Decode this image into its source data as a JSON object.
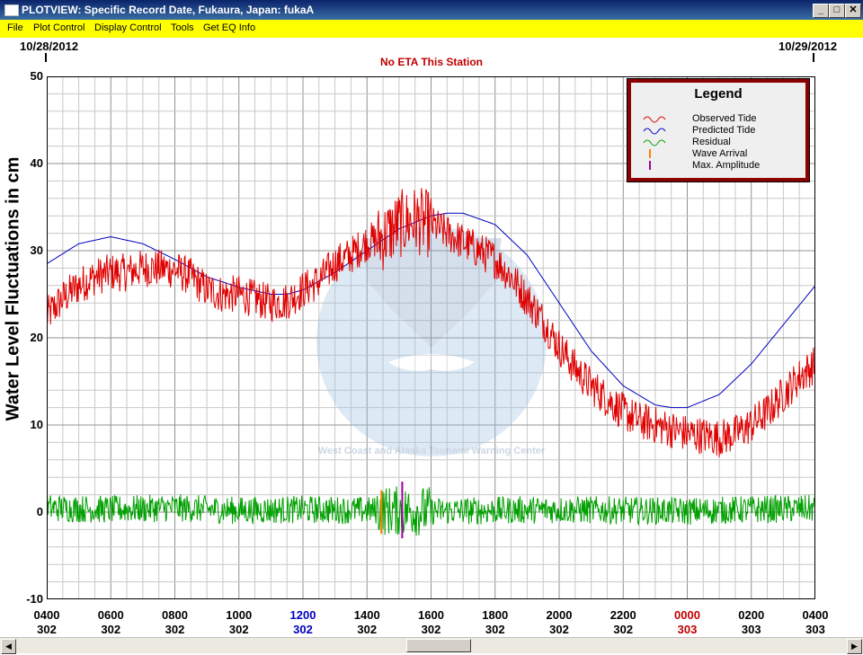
{
  "window": {
    "title": "PLOTVIEW: Specific Record Date, Fukaura, Japan: fukaA",
    "minimize_glyph": "_",
    "maximize_glyph": "□",
    "close_glyph": "✕"
  },
  "menu": [
    "File",
    "Plot Control",
    "Display Control",
    "Tools",
    "Get EQ Info"
  ],
  "header": {
    "start_date": "10/28/2012",
    "end_date": "10/29/2012",
    "notice": "No ETA This Station",
    "notice_color": "#c00000"
  },
  "legend": {
    "title": "Legend",
    "items": [
      {
        "label": "Observed Tide",
        "color": "#e00000",
        "glyph": "wave"
      },
      {
        "label": "Predicted Tide",
        "color": "#0000c0",
        "glyph": "wave"
      },
      {
        "label": "Residual",
        "color": "#00a000",
        "glyph": "wave"
      },
      {
        "label": "Wave Arrival",
        "color": "#ff8000",
        "glyph": "bar"
      },
      {
        "label": "Max. Amplitude",
        "color": "#a000a0",
        "glyph": "bar"
      }
    ]
  },
  "watermark": {
    "text": "West Coast and Alaska Tsunami Warning Center"
  },
  "chart_data": {
    "type": "line",
    "ylabel": "Water Level Fluctuations in cm",
    "ylim": [
      -10,
      50
    ],
    "xlim": [
      4,
      28
    ],
    "yticks": [
      -10,
      0,
      10,
      20,
      30,
      40,
      50
    ],
    "grid": true,
    "legend_position": "top-right",
    "xticks": [
      {
        "x": 4,
        "time": "0400",
        "day": "302",
        "color": "#000000"
      },
      {
        "x": 6,
        "time": "0600",
        "day": "302",
        "color": "#000000"
      },
      {
        "x": 8,
        "time": "0800",
        "day": "302",
        "color": "#000000"
      },
      {
        "x": 10,
        "time": "1000",
        "day": "302",
        "color": "#000000"
      },
      {
        "x": 12,
        "time": "1200",
        "day": "302",
        "color": "#0000c0"
      },
      {
        "x": 14,
        "time": "1400",
        "day": "302",
        "color": "#000000"
      },
      {
        "x": 16,
        "time": "1600",
        "day": "302",
        "color": "#000000"
      },
      {
        "x": 18,
        "time": "1800",
        "day": "302",
        "color": "#000000"
      },
      {
        "x": 20,
        "time": "2000",
        "day": "302",
        "color": "#000000"
      },
      {
        "x": 22,
        "time": "2200",
        "day": "302",
        "color": "#000000"
      },
      {
        "x": 24,
        "time": "0000",
        "day": "303",
        "color": "#c00000"
      },
      {
        "x": 26,
        "time": "0200",
        "day": "303",
        "color": "#000000"
      },
      {
        "x": 28,
        "time": "0400",
        "day": "303",
        "color": "#000000"
      }
    ],
    "series": [
      {
        "name": "Predicted Tide",
        "color": "#0000c0",
        "x": [
          4,
          5,
          6,
          7,
          8,
          9,
          10,
          11,
          11.5,
          12,
          13,
          14,
          15,
          16,
          16.5,
          17,
          18,
          19,
          20,
          21,
          22,
          23,
          23.5,
          24,
          25,
          26,
          27,
          28
        ],
        "y": [
          28.5,
          30.8,
          31.6,
          30.8,
          29,
          27,
          25.8,
          25,
          25,
          25.5,
          27.5,
          30,
          32.5,
          34,
          34.3,
          34.3,
          33,
          29.5,
          24,
          18.5,
          14.5,
          12.3,
          12,
          12,
          13.5,
          17,
          21.5,
          26
        ]
      },
      {
        "name": "Observed Tide",
        "color": "#e00000",
        "x": [
          4,
          4.5,
          5,
          5.5,
          6,
          6.5,
          7,
          7.5,
          8,
          8.5,
          9,
          9.5,
          10,
          10.5,
          11,
          11.5,
          12,
          12.5,
          13,
          13.5,
          14,
          14.5,
          15,
          15.5,
          16,
          16.5,
          17,
          17.5,
          18,
          18.5,
          19,
          19.5,
          20,
          20.5,
          21,
          21.5,
          22,
          22.5,
          23,
          23.5,
          24,
          24.5,
          25,
          25.5,
          26,
          26.5,
          27,
          27.5,
          28
        ],
        "y": [
          22.5,
          24.5,
          26,
          27,
          27.5,
          27.5,
          28,
          28,
          27.8,
          27,
          25.5,
          25,
          25,
          24.5,
          24,
          24.2,
          25.5,
          26.5,
          28.5,
          29.5,
          31,
          31.5,
          33,
          33.5,
          33,
          32,
          31,
          30,
          29,
          27,
          24.5,
          22,
          19,
          16.5,
          14.5,
          13,
          11.5,
          10.5,
          10,
          9.5,
          9,
          8.8,
          8.5,
          9,
          10,
          11.5,
          13.5,
          15.5,
          17
        ]
      },
      {
        "name": "Residual",
        "color": "#00a000",
        "x": [
          4,
          6,
          8,
          10,
          12,
          14,
          16,
          18,
          20,
          22,
          24,
          26,
          28
        ],
        "y": [
          0.5,
          0.3,
          0.5,
          0.2,
          0.3,
          0.2,
          0.1,
          0.2,
          0.3,
          0.2,
          0.1,
          0.3,
          0.4
        ]
      }
    ],
    "markers": [
      {
        "name": "Wave Arrival",
        "x": 14.45,
        "y_from": -2.5,
        "y_to": 2.5,
        "color": "#ff8000"
      },
      {
        "name": "Max. Amplitude",
        "x": 15.1,
        "y_from": -3,
        "y_to": 3.5,
        "color": "#a000a0"
      }
    ]
  }
}
